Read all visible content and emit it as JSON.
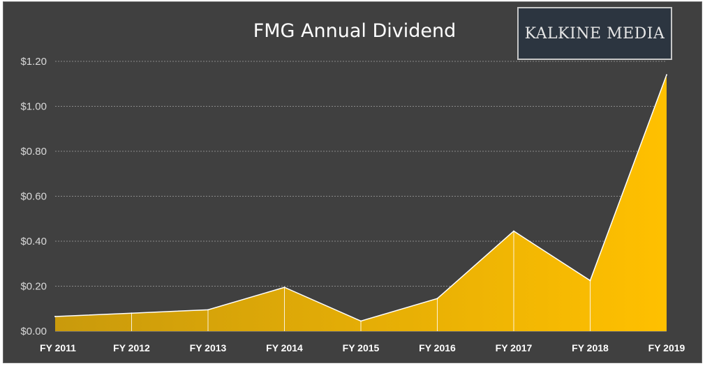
{
  "watermark": {
    "text": "KALKINE MEDIA"
  },
  "chart_data": {
    "type": "area",
    "title": "FMG Annual Dividend",
    "xlabel": "",
    "ylabel": "",
    "categories": [
      "FY 2011",
      "FY 2012",
      "FY 2013",
      "FY 2014",
      "FY 2015",
      "FY 2016",
      "FY 2017",
      "FY 2018",
      "FY 2019"
    ],
    "series": [
      {
        "values": [
          0.065,
          0.08,
          0.095,
          0.195,
          0.045,
          0.145,
          0.445,
          0.225,
          1.14
        ]
      }
    ],
    "ylim": [
      0,
      1.2
    ],
    "yticks": [
      0,
      0.2,
      0.4,
      0.6,
      0.8,
      1.0,
      1.2
    ],
    "ytick_labels": [
      "$0.00",
      "$0.20",
      "$0.40",
      "$0.60",
      "$0.80",
      "$1.00",
      "$1.20"
    ],
    "grid": true,
    "legend": "none",
    "colors": {
      "background": "#404040",
      "fill_start": "#c99a0c",
      "fill_end": "#ffc000",
      "line": "#ffffff"
    }
  }
}
